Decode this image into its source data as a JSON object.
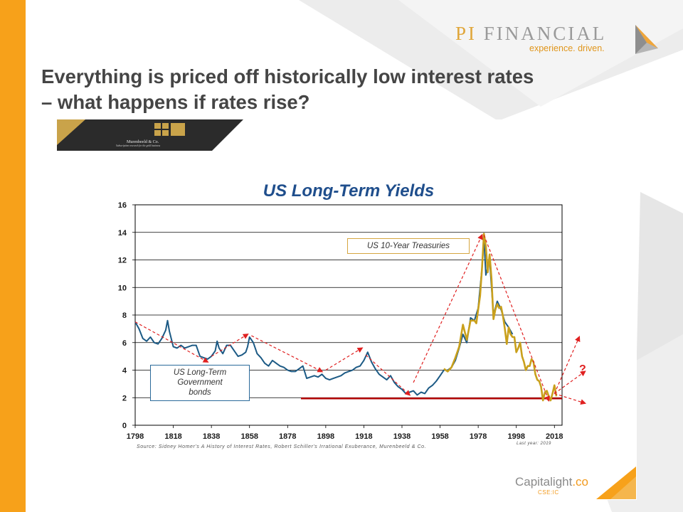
{
  "slide": {
    "title_line1": "Everything is priced off historically low interest rates",
    "title_line2": "– what happens if rates rise?"
  },
  "brand": {
    "name_pi": "PI",
    "name_rest": "FINANCIAL",
    "tagline": "experience. driven."
  },
  "publisher": {
    "name": "Murenbeeld & Co.",
    "subtitle": "Subscription research for the gold business"
  },
  "capitalight": {
    "name_main": "Capitalight",
    "name_suffix": ".co",
    "sub": "CSE:IC"
  },
  "colors": {
    "accent_orange": "#f7a11a",
    "long_term_series": "#1c5a85",
    "treasury_series": "#c9a01c",
    "trend_arrows": "#e02020",
    "floor_line": "#b00000",
    "title_blue": "#1f4e8c"
  },
  "chart_data": {
    "type": "line",
    "title": "US Long-Term Yields",
    "source": "Source: Sidney Homer's A History of Interest Rates, Robert Schiller's Irrational Exuberance, Murenbeeld & Co.",
    "last_year_note": "Last year: 2019",
    "xlim": [
      1798,
      2022
    ],
    "ylim": [
      0,
      16
    ],
    "x_ticks": [
      1798,
      1818,
      1838,
      1858,
      1878,
      1898,
      1918,
      1938,
      1958,
      1978,
      1998,
      2018
    ],
    "y_ticks": [
      0,
      2,
      4,
      6,
      8,
      10,
      12,
      14,
      16
    ],
    "grid": "horizontal",
    "annotations": {
      "treasuries_label": "US  10-Year Treasuries",
      "gov_label_line1": "US Long-Term",
      "gov_label_line2": "Government",
      "gov_label_line3": "bonds",
      "question": "?"
    },
    "series": [
      {
        "name": "US Long-Term Government bonds",
        "x": [
          1798,
          1800,
          1802,
          1804,
          1806,
          1808,
          1810,
          1812,
          1814,
          1815,
          1816,
          1818,
          1820,
          1822,
          1824,
          1826,
          1828,
          1830,
          1832,
          1834,
          1836,
          1838,
          1840,
          1841,
          1842,
          1844,
          1846,
          1848,
          1850,
          1852,
          1854,
          1856,
          1857,
          1858,
          1860,
          1862,
          1864,
          1866,
          1868,
          1870,
          1872,
          1874,
          1876,
          1878,
          1880,
          1882,
          1884,
          1886,
          1888,
          1890,
          1892,
          1894,
          1896,
          1898,
          1900,
          1902,
          1904,
          1906,
          1908,
          1910,
          1912,
          1914,
          1916,
          1918,
          1920,
          1922,
          1924,
          1926,
          1928,
          1930,
          1932,
          1934,
          1936,
          1938,
          1940,
          1942,
          1944,
          1946,
          1948,
          1950,
          1952,
          1954,
          1956,
          1958,
          1960,
          1962,
          1964,
          1966,
          1968,
          1970,
          1972,
          1974,
          1976,
          1978,
          1980,
          1981,
          1982,
          1984,
          1986,
          1988,
          1990,
          1992,
          1994,
          1996
        ],
        "y": [
          7.5,
          7.0,
          6.3,
          6.1,
          6.4,
          6.0,
          5.9,
          6.3,
          6.9,
          7.6,
          6.8,
          5.7,
          5.6,
          5.8,
          5.6,
          5.7,
          5.8,
          5.8,
          5.0,
          4.9,
          4.8,
          5.0,
          5.4,
          6.1,
          5.6,
          5.2,
          5.8,
          5.8,
          5.4,
          5.0,
          5.1,
          5.3,
          5.7,
          6.4,
          6.0,
          5.2,
          4.9,
          4.5,
          4.3,
          4.7,
          4.5,
          4.3,
          4.2,
          4.0,
          3.9,
          3.9,
          4.1,
          4.3,
          3.4,
          3.5,
          3.6,
          3.5,
          3.7,
          3.4,
          3.3,
          3.4,
          3.5,
          3.6,
          3.8,
          3.9,
          4.0,
          4.2,
          4.3,
          4.7,
          5.3,
          4.6,
          4.1,
          3.7,
          3.5,
          3.3,
          3.6,
          3.1,
          2.8,
          2.6,
          2.3,
          2.4,
          2.5,
          2.2,
          2.4,
          2.3,
          2.7,
          2.9,
          3.2,
          3.6,
          4.0,
          4.0,
          4.2,
          4.7,
          5.6,
          6.6,
          6.0,
          7.8,
          7.6,
          8.5,
          11.4,
          13.6,
          10.9,
          12.0,
          8.0,
          9.0,
          8.4,
          7.5,
          7.1,
          6.6
        ]
      },
      {
        "name": "US 10-Year Treasuries",
        "x": [
          1960,
          1962,
          1964,
          1966,
          1968,
          1970,
          1972,
          1974,
          1976,
          1977,
          1978,
          1979,
          1980,
          1981,
          1982,
          1983,
          1984,
          1985,
          1986,
          1987,
          1988,
          1989,
          1990,
          1991,
          1992,
          1993,
          1994,
          1995,
          1996,
          1997,
          1998,
          1999,
          2000,
          2001,
          2002,
          2003,
          2004,
          2005,
          2006,
          2007,
          2008,
          2009,
          2010,
          2011,
          2012,
          2013,
          2014,
          2015,
          2016,
          2017,
          2018,
          2019
        ],
        "y": [
          4.1,
          3.9,
          4.2,
          4.9,
          5.7,
          7.3,
          6.2,
          7.6,
          7.6,
          7.4,
          8.4,
          9.4,
          11.4,
          13.9,
          13.0,
          11.1,
          12.4,
          10.6,
          7.7,
          8.4,
          8.8,
          8.5,
          8.6,
          7.9,
          7.0,
          5.9,
          7.1,
          6.6,
          6.4,
          6.4,
          5.3,
          5.6,
          6.0,
          5.0,
          4.6,
          4.0,
          4.3,
          4.3,
          4.8,
          4.6,
          3.7,
          3.3,
          3.2,
          2.8,
          1.8,
          2.4,
          2.5,
          2.1,
          1.8,
          2.3,
          2.9,
          2.1
        ]
      }
    ]
  }
}
